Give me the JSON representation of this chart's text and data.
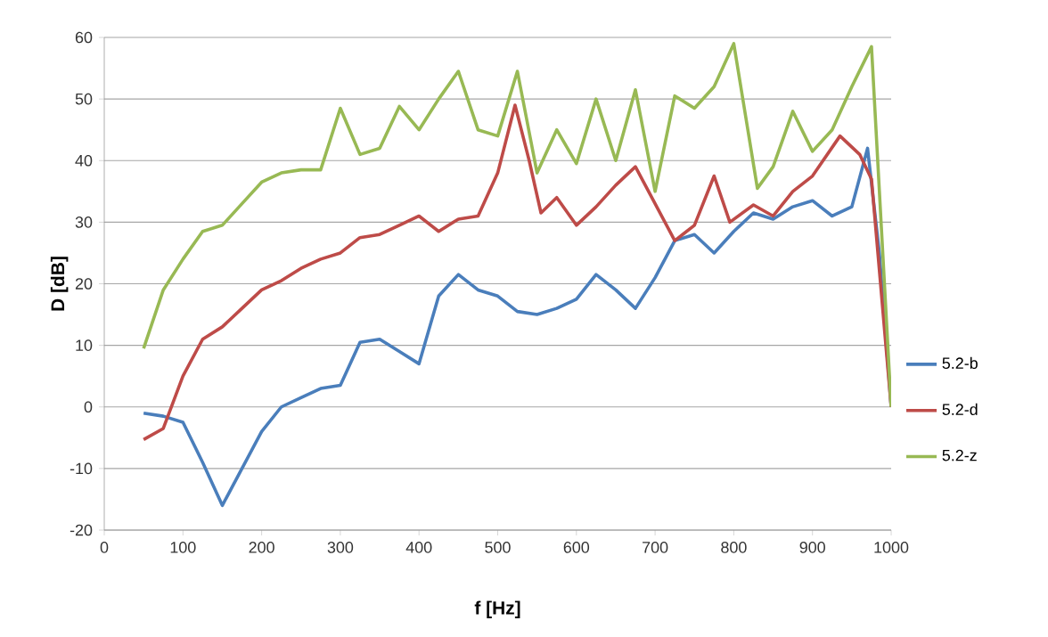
{
  "chart_data": {
    "type": "line",
    "xlabel": "f [Hz]",
    "ylabel": "D [dB]",
    "xlim": [
      0,
      1000
    ],
    "ylim": [
      -20,
      60
    ],
    "xticks": [
      0,
      100,
      200,
      300,
      400,
      500,
      600,
      700,
      800,
      900,
      1000
    ],
    "yticks": [
      -20,
      -10,
      0,
      10,
      20,
      30,
      40,
      50,
      60
    ],
    "grid": "y",
    "legend": "right",
    "marker": "none",
    "line_style": "solid",
    "series": [
      {
        "name": "5.2-b",
        "color": "#4a7ebb",
        "x": [
          50,
          75,
          100,
          125,
          150,
          175,
          200,
          225,
          250,
          275,
          300,
          325,
          350,
          375,
          400,
          425,
          450,
          475,
          500,
          525,
          550,
          575,
          600,
          625,
          650,
          675,
          700,
          725,
          750,
          775,
          800,
          825,
          850,
          875,
          900,
          925,
          950,
          970,
          985,
          1000
        ],
        "values": [
          -1,
          -1.5,
          -2.5,
          -9,
          -16,
          -10,
          -4,
          0,
          1.5,
          3,
          3.5,
          10.5,
          11,
          9,
          7,
          18,
          21.5,
          19,
          18,
          15.5,
          15,
          16,
          17.5,
          21.5,
          19,
          16,
          21,
          27,
          28,
          25,
          28.5,
          31.5,
          30.5,
          32.5,
          33.5,
          31,
          32.5,
          42,
          25,
          0
        ]
      },
      {
        "name": "5.2-d",
        "color": "#be4b48",
        "x": [
          50,
          75,
          100,
          125,
          150,
          175,
          200,
          225,
          250,
          275,
          300,
          325,
          350,
          375,
          400,
          425,
          450,
          475,
          500,
          522,
          540,
          555,
          575,
          600,
          625,
          650,
          675,
          700,
          725,
          750,
          775,
          795,
          825,
          850,
          875,
          900,
          935,
          960,
          975,
          1000
        ],
        "values": [
          -5.3,
          -3.5,
          5,
          11,
          13,
          16,
          19,
          20.5,
          22.5,
          24,
          25,
          27.5,
          28,
          29.5,
          31,
          28.5,
          30.5,
          31,
          38,
          49,
          40,
          31.5,
          34,
          29.5,
          32.5,
          36,
          39,
          33,
          27,
          29.5,
          37.5,
          30,
          32.8,
          31,
          35,
          37.5,
          44,
          41,
          37,
          0
        ]
      },
      {
        "name": "5.2-z",
        "color": "#98b954",
        "x": [
          50,
          75,
          100,
          125,
          150,
          175,
          200,
          225,
          250,
          275,
          300,
          325,
          350,
          375,
          400,
          425,
          450,
          475,
          500,
          525,
          550,
          575,
          600,
          625,
          650,
          675,
          700,
          725,
          750,
          775,
          800,
          830,
          850,
          875,
          900,
          925,
          950,
          975,
          1000
        ],
        "values": [
          9.5,
          19,
          24,
          28.5,
          29.5,
          33,
          36.5,
          38,
          38.5,
          38.5,
          48.5,
          41,
          42,
          48.8,
          45,
          50,
          54.5,
          45,
          44,
          54.5,
          38,
          45,
          39.5,
          50,
          40,
          51.5,
          35,
          50.5,
          48.5,
          52,
          59,
          35.5,
          39,
          48,
          41.5,
          45,
          52,
          58.5,
          0
        ]
      }
    ]
  }
}
